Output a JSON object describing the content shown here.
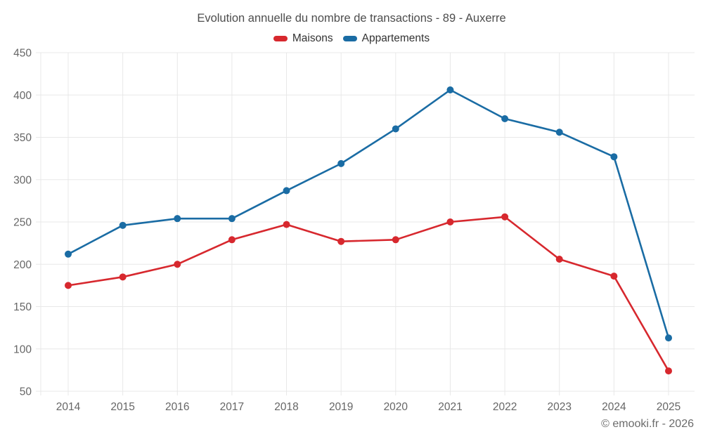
{
  "title": "Evolution annuelle du nombre de transactions - 89 - Auxerre",
  "footer": "© emooki.fr - 2026",
  "colors": {
    "maisons": "#d7282e",
    "appartements": "#1a6ca4",
    "gridline": "#e8e8e8",
    "axis_text": "#666666",
    "title_text": "#4d4d4d",
    "legend_text": "#333333",
    "footer_text": "#6b6b6b",
    "background": "#ffffff"
  },
  "chart_data": {
    "type": "line",
    "title": "Evolution annuelle du nombre de transactions - 89 - Auxerre",
    "categories": [
      "2014",
      "2015",
      "2016",
      "2017",
      "2018",
      "2019",
      "2020",
      "2021",
      "2022",
      "2023",
      "2024",
      "2025"
    ],
    "series": [
      {
        "name": "Maisons",
        "color": "#d7282e",
        "values": [
          175,
          185,
          200,
          229,
          247,
          227,
          229,
          250,
          256,
          206,
          186,
          74
        ]
      },
      {
        "name": "Appartements",
        "color": "#1a6ca4",
        "values": [
          212,
          246,
          254,
          254,
          287,
          319,
          360,
          406,
          372,
          356,
          327,
          113
        ]
      }
    ],
    "xlabel": "",
    "ylabel": "",
    "ylim": [
      50,
      450
    ],
    "ytick_step": 50,
    "yticks": [
      50,
      100,
      150,
      200,
      250,
      300,
      350,
      400,
      450
    ],
    "grid": true,
    "legend_position": "top",
    "marker": "circle"
  }
}
